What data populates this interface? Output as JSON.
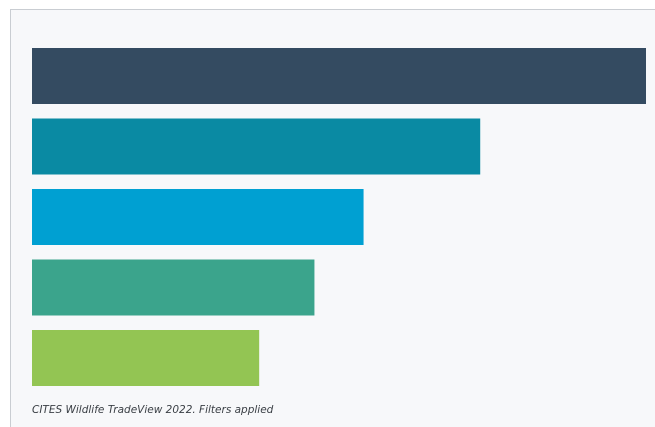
{
  "chart_data": {
    "type": "bar",
    "orientation": "horizontal",
    "categories": [
      "",
      "",
      "",
      "",
      ""
    ],
    "values": [
      100,
      73,
      54,
      46,
      37
    ],
    "colors": [
      "#344b61",
      "#0a8aa3",
      "#00a0d2",
      "#3ba48c",
      "#93c553"
    ],
    "title": "",
    "xlabel": "",
    "ylabel": "",
    "grid": false,
    "legend": "none"
  },
  "footer": {
    "source_note": "CITES Wildlife TradeView 2022. Filters applied"
  }
}
